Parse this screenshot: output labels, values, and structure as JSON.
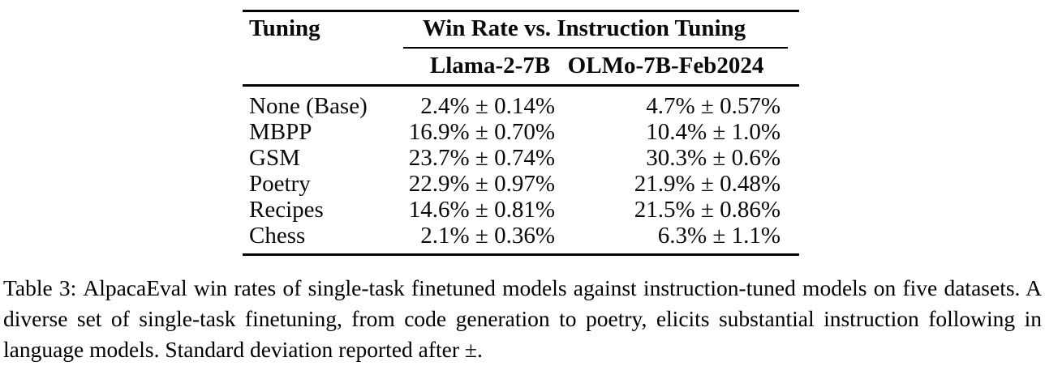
{
  "colors": {
    "background": "#ffffff",
    "text": "#0a0a0a",
    "rule": "#000000"
  },
  "table": {
    "header": {
      "tuning": "Tuning",
      "span": "Win Rate vs. Instruction Tuning",
      "model_columns": [
        "Llama-2-7B",
        "OLMo-7B-Feb2024"
      ]
    },
    "rows": [
      {
        "tuning": "None (Base)",
        "llama": "2.4% ± 0.14%",
        "olmo": "4.7% ± 0.57%"
      },
      {
        "tuning": "MBPP",
        "llama": "16.9% ± 0.70%",
        "olmo": "10.4% ± 1.0%"
      },
      {
        "tuning": "GSM",
        "llama": "23.7% ± 0.74%",
        "olmo": "30.3% ± 0.6%"
      },
      {
        "tuning": "Poetry",
        "llama": "22.9% ± 0.97%",
        "olmo": "21.9% ± 0.48%"
      },
      {
        "tuning": "Recipes",
        "llama": "14.6% ± 0.81%",
        "olmo": "21.5% ± 0.86%"
      },
      {
        "tuning": "Chess",
        "llama": "2.1% ± 0.36%",
        "olmo": "6.3% ± 1.1%"
      }
    ]
  },
  "caption": {
    "label": "Table 3:",
    "text": "AlpacaEval win rates of single-task finetuned models against instruction-tuned models on five datasets. A diverse set of single-task finetuning, from code generation to poetry, elicits substantial instruction following in language models. Standard deviation reported after ±."
  }
}
